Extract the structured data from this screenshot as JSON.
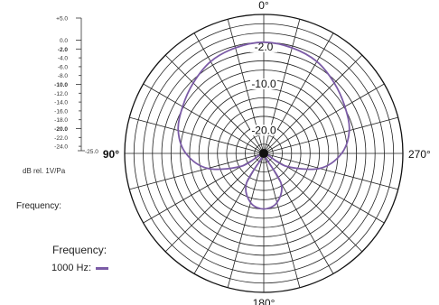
{
  "chart_data": {
    "type": "polar",
    "angle_labels": {
      "top": "0°",
      "left": "90°",
      "right": "270°",
      "bottom": "180°"
    },
    "ring_labels": [
      "-2.0",
      "-10.0",
      "-20.0"
    ],
    "scale": {
      "ticks": [
        "+5.0",
        "0.0",
        "-2.0",
        "-4.0",
        "-6.0",
        "-8.0",
        "-10.0",
        "-12.0",
        "-14.0",
        "-16.0",
        "-18.0",
        "-20.0",
        "-22.0",
        "-24.0",
        "-25.0"
      ],
      "bold_ticks": [
        "-2.0",
        "-10.0",
        "-20.0"
      ],
      "unit_label": "dB rel. 1V/Pa"
    },
    "range_db": [
      -25,
      5
    ],
    "grid": true,
    "series": [
      {
        "name": "1000 Hz",
        "color": "#7b5ba6",
        "points": [
          [
            0,
            -1.0
          ],
          [
            15,
            -1.4
          ],
          [
            30,
            -2.1
          ],
          [
            45,
            -3.5
          ],
          [
            60,
            -4.8
          ],
          [
            75,
            -5.9
          ],
          [
            90,
            -8.2
          ],
          [
            105,
            -12.5
          ],
          [
            120,
            -19.5
          ],
          [
            135,
            -25.0
          ],
          [
            150,
            -17.5
          ],
          [
            165,
            -14.0
          ],
          [
            180,
            -13.0
          ],
          [
            195,
            -14.0
          ],
          [
            210,
            -17.5
          ],
          [
            225,
            -25.0
          ],
          [
            240,
            -19.5
          ],
          [
            255,
            -12.5
          ],
          [
            270,
            -8.2
          ],
          [
            285,
            -5.9
          ],
          [
            300,
            -4.8
          ],
          [
            315,
            -3.5
          ],
          [
            330,
            -2.1
          ],
          [
            345,
            -1.4
          ]
        ]
      }
    ]
  },
  "captions": {
    "frequency_side": "Frequency:",
    "legend_title": "Frequency:",
    "legend_entry": "1000 Hz:"
  }
}
